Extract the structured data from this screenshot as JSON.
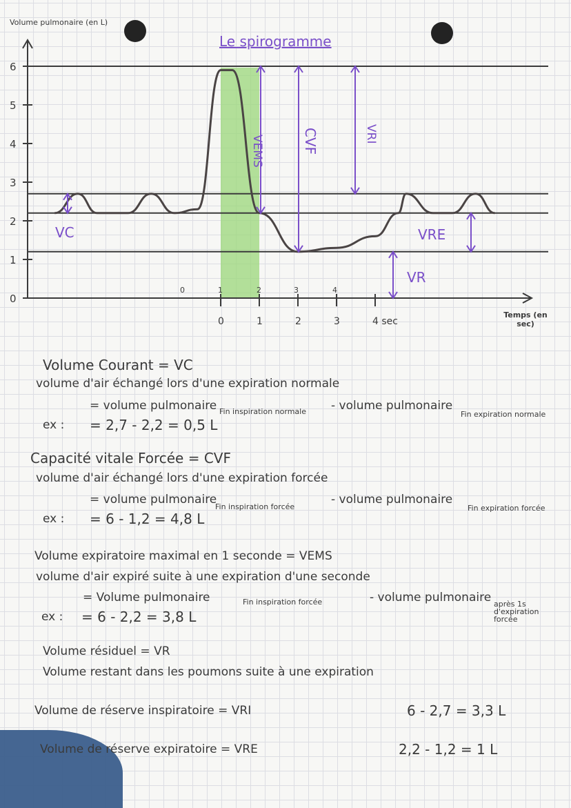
{
  "colors": {
    "ink": "#3a3a3a",
    "purple": "#7a4fc9",
    "green": "#9bd77a",
    "paper": "#f7f7f5",
    "grid": "#dcdde3",
    "blob": "#3b5e8c"
  },
  "chart_data": {
    "type": "line",
    "title": "Le spirogramme",
    "ylabel": "Volume pulmonaire (en L)",
    "xlabel": "Temps (en sec)",
    "ylim": [
      0,
      6
    ],
    "y_ticks": [
      "0",
      "1",
      "2",
      "3",
      "4",
      "5",
      "6"
    ],
    "x_ticks_top": [
      "0",
      "1",
      "2",
      "3",
      "4"
    ],
    "x_ticks_bottom": [
      "0",
      "1",
      "2",
      "3",
      "4 sec"
    ],
    "series": [
      {
        "points": [
          [
            -4.3,
            2.2
          ],
          [
            -3.7,
            2.7
          ],
          [
            -3.2,
            2.2
          ],
          [
            -2.4,
            2.2
          ],
          [
            -1.8,
            2.7
          ],
          [
            -1.2,
            2.2
          ],
          [
            -0.6,
            2.3
          ],
          [
            0,
            5.9
          ],
          [
            0.3,
            5.9
          ],
          [
            1,
            2.2
          ],
          [
            2,
            1.2
          ],
          [
            3,
            1.3
          ],
          [
            4,
            1.6
          ],
          [
            4.6,
            2.2
          ],
          [
            4.8,
            2.7
          ],
          [
            5.5,
            2.2
          ],
          [
            6,
            2.2
          ],
          [
            6.6,
            2.7
          ],
          [
            7.1,
            2.2
          ]
        ]
      }
    ],
    "reference_lines": [
      6,
      2.7,
      2.2,
      1.2
    ],
    "labels": {
      "vc": "VC",
      "vems": "VEMS",
      "cvf": "CVF",
      "vri": "VRI",
      "vre": "VRE",
      "vr": "VR"
    }
  },
  "notes": {
    "vc": {
      "title": "Volume Courant = VC",
      "def": "volume d'air échangé lors d'une expiration normale",
      "formula_a": "= volume pulmonaire",
      "formula_a_sub": "Fin inspiration normale",
      "formula_b": "- volume pulmonaire",
      "formula_b_sub": "Fin expiration normale",
      "ex_label": "ex :",
      "example": "= 2,7 - 2,2 = 0,5 L"
    },
    "cvf": {
      "title": "Capacité vitale Forcée = CVF",
      "def": "volume d'air échangé lors d'une expiration forcée",
      "formula_a": "= volume pulmonaire",
      "formula_a_sub": "Fin inspiration forcée",
      "formula_b": "- volume pulmonaire",
      "formula_b_sub": "Fin expiration forcée",
      "ex_label": "ex :",
      "example": "= 6 - 1,2 = 4,8 L"
    },
    "vems": {
      "title": "Volume expiratoire maximal en 1 seconde = VEMS",
      "def": "volume d'air expiré suite à une expiration d'une seconde",
      "formula_a": "= Volume pulmonaire",
      "formula_a_sub": "Fin inspiration forcée",
      "formula_b": "- volume pulmonaire",
      "formula_b_sub": "après 1s d'expiration forcée",
      "ex_label": "ex :",
      "example": "= 6 - 2,2 = 3,8 L"
    },
    "vr": {
      "title": "Volume résiduel = VR",
      "def": "Volume restant dans les poumons suite à une expiration"
    },
    "vri": {
      "title": "Volume de réserve inspiratoire = VRI",
      "calc": "6 - 2,7 = 3,3 L"
    },
    "vre": {
      "title": "Volume de réserve expiratoire = VRE",
      "calc": "2,2 - 1,2 = 1 L"
    }
  }
}
